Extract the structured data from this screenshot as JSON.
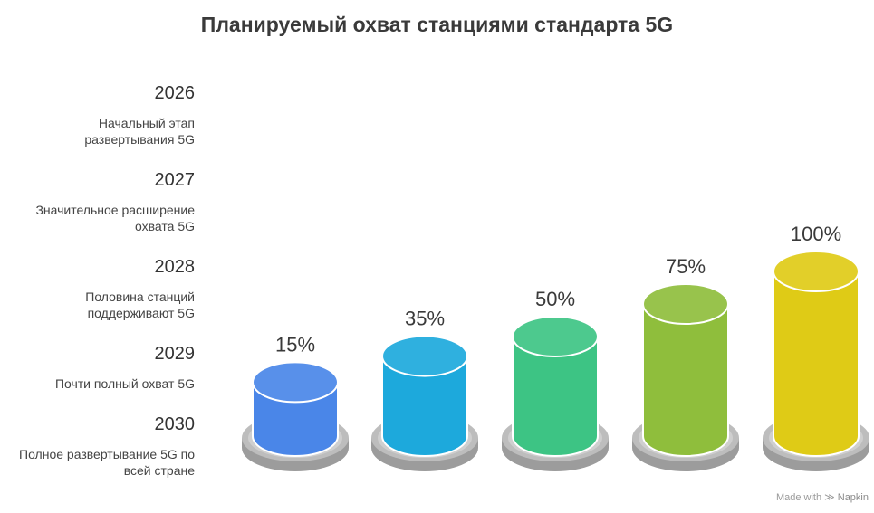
{
  "chart_data": {
    "type": "bar",
    "title": "Планируемый охват станциями стандарта 5G",
    "categories": [
      "2026",
      "2027",
      "2028",
      "2029",
      "2030"
    ],
    "category_descriptions": [
      "Начальный этап\nразвертывания 5G",
      "Значительное расширение\nохвата 5G",
      "Половина станций\nподдерживают 5G",
      "Почти полный охват 5G",
      "Полное развертывание 5G по\nвсей стране"
    ],
    "values": [
      15,
      35,
      50,
      75,
      100
    ],
    "data_labels": [
      "15%",
      "35%",
      "50%",
      "75%",
      "100%"
    ],
    "ylim": [
      0,
      100
    ],
    "grid": false,
    "colors": [
      "#4a86e8",
      "#1da9dc",
      "#3dc484",
      "#8fbe3c",
      "#dfcb16"
    ]
  },
  "watermark": {
    "prefix": "Made with",
    "brand": "Napkin"
  }
}
